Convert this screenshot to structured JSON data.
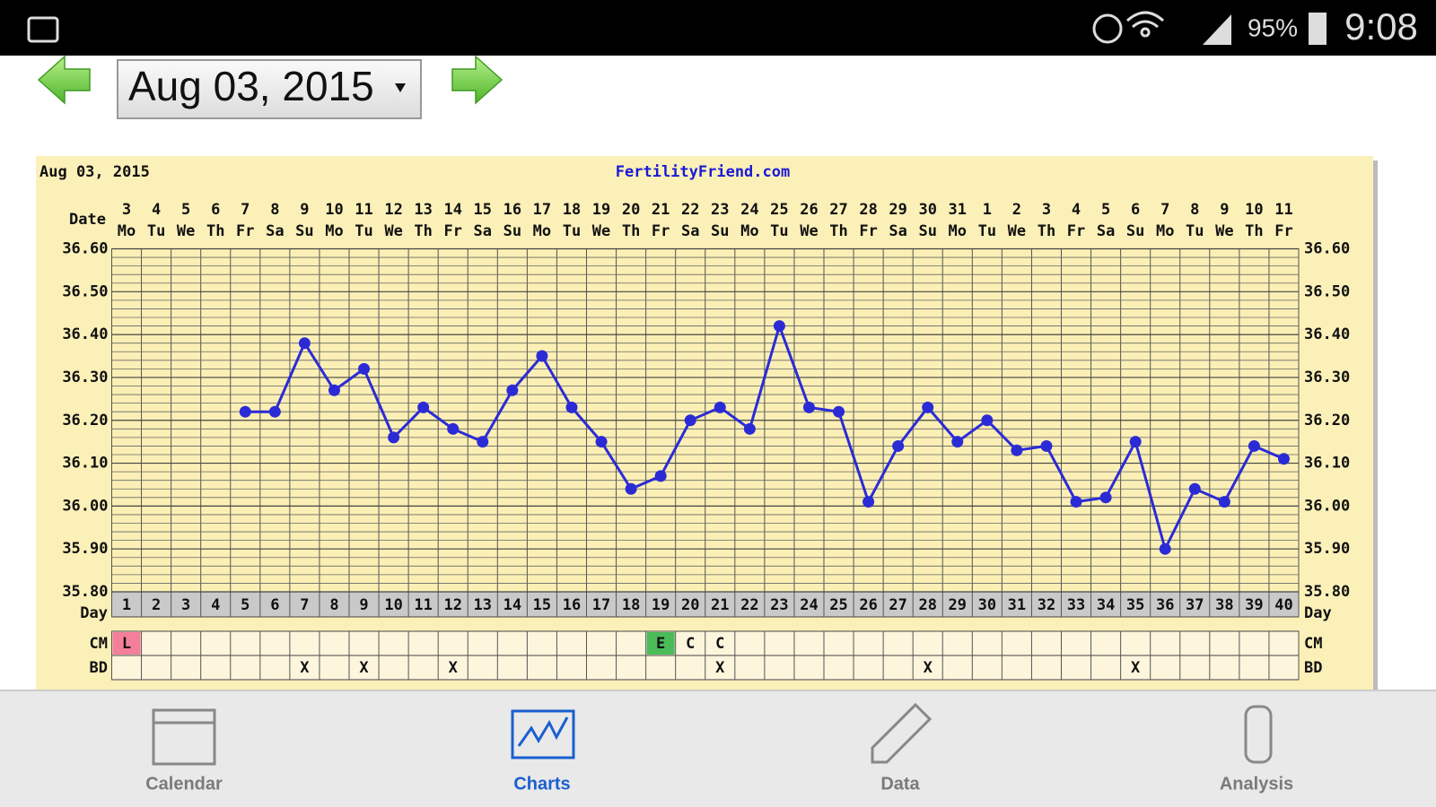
{
  "status_bar": {
    "battery": "95%",
    "time": "9:08"
  },
  "date_picker": {
    "value": "Aug 03, 2015"
  },
  "chart_data": {
    "type": "line",
    "date_label": "Aug 03, 2015",
    "title": "FertilityFriend.com",
    "date_row_label": "Date",
    "day_row_label": "Day",
    "cm_row_label": "CM",
    "bd_row_label": "BD",
    "date_numbers": [
      3,
      4,
      5,
      6,
      7,
      8,
      9,
      10,
      11,
      12,
      13,
      14,
      15,
      16,
      17,
      18,
      19,
      20,
      21,
      22,
      23,
      24,
      25,
      26,
      27,
      28,
      29,
      30,
      31,
      1,
      2,
      3,
      4,
      5,
      6,
      7,
      8,
      9,
      10,
      11
    ],
    "weekdays": [
      "Mo",
      "Tu",
      "We",
      "Th",
      "Fr",
      "Sa",
      "Su",
      "Mo",
      "Tu",
      "We",
      "Th",
      "Fr",
      "Sa",
      "Su",
      "Mo",
      "Tu",
      "We",
      "Th",
      "Fr",
      "Sa",
      "Su",
      "Mo",
      "Tu",
      "We",
      "Th",
      "Fr",
      "Sa",
      "Su",
      "Mo",
      "Tu",
      "We",
      "Th",
      "Fr",
      "Sa",
      "Su",
      "Mo",
      "Tu",
      "We",
      "Th",
      "Fr"
    ],
    "x": [
      1,
      2,
      3,
      4,
      5,
      6,
      7,
      8,
      9,
      10,
      11,
      12,
      13,
      14,
      15,
      16,
      17,
      18,
      19,
      20,
      21,
      22,
      23,
      24,
      25,
      26,
      27,
      28,
      29,
      30,
      31,
      32,
      33,
      34,
      35,
      36,
      37,
      38,
      39,
      40
    ],
    "values": [
      null,
      null,
      null,
      null,
      36.22,
      36.22,
      36.38,
      36.27,
      36.32,
      36.16,
      36.23,
      36.18,
      36.15,
      36.27,
      36.35,
      36.23,
      36.15,
      36.04,
      36.07,
      36.2,
      36.23,
      36.18,
      36.42,
      36.23,
      36.22,
      36.01,
      36.14,
      36.23,
      36.15,
      36.2,
      36.13,
      36.14,
      36.01,
      36.02,
      36.15,
      35.9,
      36.04,
      36.01,
      36.14,
      36.11
    ],
    "color": "#2b2bd6",
    "cm": [
      "L",
      null,
      null,
      null,
      null,
      null,
      null,
      null,
      null,
      null,
      null,
      null,
      null,
      null,
      null,
      null,
      null,
      null,
      "E",
      "C",
      "C",
      null,
      null,
      null,
      null,
      null,
      null,
      null,
      null,
      null,
      null,
      null,
      null,
      null,
      null,
      null,
      null,
      null,
      null,
      null
    ],
    "cm_colors": [
      "#f47f9a",
      null,
      null,
      null,
      null,
      null,
      null,
      null,
      null,
      null,
      null,
      null,
      null,
      null,
      null,
      null,
      null,
      null,
      "#4cbb5a",
      null,
      null,
      null,
      null,
      null,
      null,
      null,
      null,
      null,
      null,
      null,
      null,
      null,
      null,
      null,
      null,
      null,
      null,
      null,
      null,
      null
    ],
    "bd": [
      null,
      null,
      null,
      null,
      null,
      null,
      "X",
      null,
      "X",
      null,
      null,
      "X",
      null,
      null,
      null,
      null,
      null,
      null,
      null,
      null,
      "X",
      null,
      null,
      null,
      null,
      null,
      null,
      "X",
      null,
      null,
      null,
      null,
      null,
      null,
      "X",
      null,
      null,
      null,
      null,
      null
    ],
    "ylim": [
      35.8,
      36.6
    ],
    "yticks": [
      {
        "value": 35.8,
        "label": "35.80"
      },
      {
        "value": 35.9,
        "label": "35.90"
      },
      {
        "value": 36.0,
        "label": "36.00"
      },
      {
        "value": 36.1,
        "label": "36.10"
      },
      {
        "value": 36.2,
        "label": "36.20"
      },
      {
        "value": 36.3,
        "label": "36.30"
      },
      {
        "value": 36.4,
        "label": "36.40"
      },
      {
        "value": 36.5,
        "label": "36.50"
      },
      {
        "value": 36.6,
        "label": "36.60"
      }
    ],
    "grid": true
  },
  "bottom_nav": {
    "items": [
      "Calendar",
      "Charts",
      "Data",
      "Analysis"
    ],
    "active": 1
  }
}
